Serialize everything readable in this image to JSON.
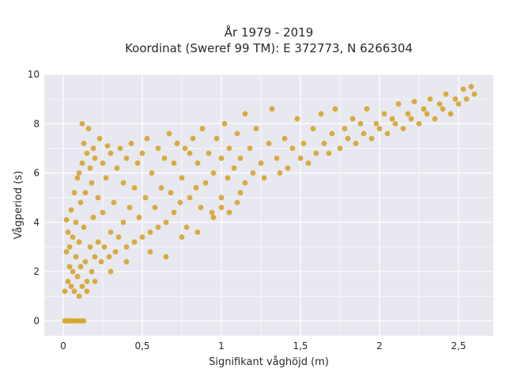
{
  "chart_data": {
    "type": "scatter",
    "title": "År 1979 - 2019",
    "subtitle": "Koordinat (Sweref 99 TM): E 372773, N 6266304",
    "xlabel": "Signifikant våghöjd (m)",
    "ylabel": "Vågperiod (s)",
    "xlim": [
      -0.12,
      2.72
    ],
    "ylim": [
      -0.6,
      10.0
    ],
    "x_ticks": [
      0,
      0.5,
      1,
      1.5,
      2,
      2.5
    ],
    "x_tick_labels": [
      "0",
      "0,5",
      "1",
      "1,5",
      "2",
      "2,5"
    ],
    "y_ticks": [
      0,
      2,
      4,
      6,
      8,
      10
    ],
    "y_tick_labels": [
      "0",
      "2",
      "4",
      "6",
      "8",
      "10"
    ],
    "grid": true,
    "legend": "none",
    "colors": {
      "points": "#D4A020",
      "plot_background": "#E8E8F0",
      "grid": "#FFFFFF"
    },
    "series": [
      {
        "values": [
          [
            0.01,
            0.0
          ],
          [
            0.03,
            0.0
          ],
          [
            0.05,
            0.0
          ],
          [
            0.07,
            0.0
          ],
          [
            0.09,
            0.0
          ],
          [
            0.11,
            0.0
          ],
          [
            0.13,
            0.0
          ],
          [
            0.01,
            1.2
          ],
          [
            0.02,
            4.1
          ],
          [
            0.02,
            2.8
          ],
          [
            0.03,
            1.6
          ],
          [
            0.03,
            3.6
          ],
          [
            0.04,
            2.2
          ],
          [
            0.04,
            3.0
          ],
          [
            0.05,
            1.4
          ],
          [
            0.05,
            4.5
          ],
          [
            0.06,
            2.0
          ],
          [
            0.06,
            3.4
          ],
          [
            0.07,
            5.2
          ],
          [
            0.07,
            1.2
          ],
          [
            0.08,
            2.6
          ],
          [
            0.08,
            4.0
          ],
          [
            0.09,
            1.8
          ],
          [
            0.09,
            5.8
          ],
          [
            0.1,
            3.2
          ],
          [
            0.1,
            6.0
          ],
          [
            0.11,
            2.2
          ],
          [
            0.11,
            4.8
          ],
          [
            0.12,
            1.4
          ],
          [
            0.12,
            6.4
          ],
          [
            0.13,
            3.8
          ],
          [
            0.13,
            7.2
          ],
          [
            0.14,
            2.4
          ],
          [
            0.14,
            5.2
          ],
          [
            0.15,
            1.6
          ],
          [
            0.15,
            6.8
          ],
          [
            0.12,
            8.0
          ],
          [
            0.16,
            7.8
          ],
          [
            0.17,
            3.0
          ],
          [
            0.17,
            6.2
          ],
          [
            0.18,
            2.0
          ],
          [
            0.18,
            5.6
          ],
          [
            0.19,
            4.2
          ],
          [
            0.19,
            7.0
          ],
          [
            0.2,
            2.6
          ],
          [
            0.2,
            6.6
          ],
          [
            0.22,
            3.2
          ],
          [
            0.22,
            5.0
          ],
          [
            0.23,
            7.4
          ],
          [
            0.24,
            2.4
          ],
          [
            0.25,
            4.4
          ],
          [
            0.25,
            6.4
          ],
          [
            0.26,
            3.0
          ],
          [
            0.27,
            5.8
          ],
          [
            0.28,
            7.1
          ],
          [
            0.29,
            2.6
          ],
          [
            0.3,
            3.6
          ],
          [
            0.3,
            6.8
          ],
          [
            0.32,
            4.8
          ],
          [
            0.33,
            2.8
          ],
          [
            0.34,
            6.2
          ],
          [
            0.35,
            3.4
          ],
          [
            0.36,
            7.0
          ],
          [
            0.38,
            4.0
          ],
          [
            0.38,
            5.6
          ],
          [
            0.4,
            3.0
          ],
          [
            0.4,
            6.6
          ],
          [
            0.42,
            4.6
          ],
          [
            0.43,
            7.2
          ],
          [
            0.45,
            3.2
          ],
          [
            0.45,
            5.4
          ],
          [
            0.47,
            6.4
          ],
          [
            0.48,
            4.2
          ],
          [
            0.5,
            3.4
          ],
          [
            0.5,
            6.8
          ],
          [
            0.52,
            5.0
          ],
          [
            0.53,
            7.4
          ],
          [
            0.55,
            3.6
          ],
          [
            0.56,
            6.0
          ],
          [
            0.58,
            4.6
          ],
          [
            0.6,
            3.8
          ],
          [
            0.6,
            7.0
          ],
          [
            0.62,
            5.4
          ],
          [
            0.64,
            6.6
          ],
          [
            0.65,
            4.0
          ],
          [
            0.67,
            7.6
          ],
          [
            0.68,
            5.2
          ],
          [
            0.7,
            4.4
          ],
          [
            0.7,
            6.4
          ],
          [
            0.72,
            7.2
          ],
          [
            0.74,
            4.8
          ],
          [
            0.75,
            5.8
          ],
          [
            0.77,
            7.0
          ],
          [
            0.78,
            3.8
          ],
          [
            0.8,
            5.0
          ],
          [
            0.8,
            6.8
          ],
          [
            0.82,
            7.4
          ],
          [
            0.84,
            5.4
          ],
          [
            0.85,
            6.4
          ],
          [
            0.87,
            4.6
          ],
          [
            0.88,
            7.8
          ],
          [
            0.9,
            5.6
          ],
          [
            0.92,
            6.8
          ],
          [
            0.94,
            4.4
          ],
          [
            0.95,
            6.0
          ],
          [
            0.97,
            7.4
          ],
          [
            1.0,
            5.0
          ],
          [
            1.0,
            6.6
          ],
          [
            1.02,
            8.0
          ],
          [
            1.04,
            5.8
          ],
          [
            1.05,
            7.0
          ],
          [
            1.08,
            6.2
          ],
          [
            1.1,
            4.8
          ],
          [
            1.1,
            7.6
          ],
          [
            1.12,
            6.6
          ],
          [
            1.15,
            5.6
          ],
          [
            1.15,
            8.4
          ],
          [
            1.18,
            7.0
          ],
          [
            1.2,
            6.0
          ],
          [
            1.22,
            7.8
          ],
          [
            1.25,
            6.4
          ],
          [
            1.27,
            5.8
          ],
          [
            1.3,
            7.2
          ],
          [
            1.32,
            8.6
          ],
          [
            1.35,
            6.6
          ],
          [
            1.37,
            6.0
          ],
          [
            1.4,
            7.4
          ],
          [
            1.42,
            6.2
          ],
          [
            1.45,
            7.0
          ],
          [
            1.48,
            8.2
          ],
          [
            1.5,
            6.6
          ],
          [
            1.52,
            7.2
          ],
          [
            1.55,
            6.4
          ],
          [
            1.58,
            7.8
          ],
          [
            1.6,
            6.8
          ],
          [
            1.63,
            8.4
          ],
          [
            1.65,
            7.2
          ],
          [
            1.68,
            6.8
          ],
          [
            1.7,
            7.6
          ],
          [
            1.72,
            8.6
          ],
          [
            1.75,
            7.0
          ],
          [
            1.78,
            7.8
          ],
          [
            1.8,
            7.4
          ],
          [
            1.83,
            8.2
          ],
          [
            1.85,
            7.2
          ],
          [
            1.88,
            8.0
          ],
          [
            1.9,
            7.6
          ],
          [
            1.92,
            8.6
          ],
          [
            1.95,
            7.4
          ],
          [
            1.98,
            8.0
          ],
          [
            2.0,
            7.8
          ],
          [
            2.03,
            8.4
          ],
          [
            2.05,
            7.6
          ],
          [
            2.08,
            8.2
          ],
          [
            2.1,
            8.0
          ],
          [
            2.12,
            8.8
          ],
          [
            2.15,
            7.8
          ],
          [
            2.18,
            8.4
          ],
          [
            2.2,
            8.2
          ],
          [
            2.22,
            8.9
          ],
          [
            2.25,
            8.0
          ],
          [
            2.28,
            8.6
          ],
          [
            2.3,
            8.4
          ],
          [
            2.32,
            9.0
          ],
          [
            2.35,
            8.2
          ],
          [
            2.38,
            8.8
          ],
          [
            2.4,
            8.6
          ],
          [
            2.42,
            9.2
          ],
          [
            2.45,
            8.4
          ],
          [
            2.48,
            9.0
          ],
          [
            2.5,
            8.8
          ],
          [
            2.53,
            9.4
          ],
          [
            2.55,
            9.0
          ],
          [
            2.58,
            9.5
          ],
          [
            2.6,
            9.2
          ],
          [
            0.65,
            2.6
          ],
          [
            0.75,
            3.4
          ],
          [
            0.85,
            3.6
          ],
          [
            0.95,
            4.2
          ],
          [
            1.0,
            4.6
          ],
          [
            1.05,
            4.4
          ],
          [
            1.12,
            5.2
          ],
          [
            0.4,
            2.4
          ],
          [
            0.55,
            2.8
          ],
          [
            0.3,
            2.0
          ],
          [
            0.2,
            1.6
          ],
          [
            0.15,
            1.2
          ],
          [
            0.1,
            1.0
          ]
        ]
      }
    ]
  }
}
